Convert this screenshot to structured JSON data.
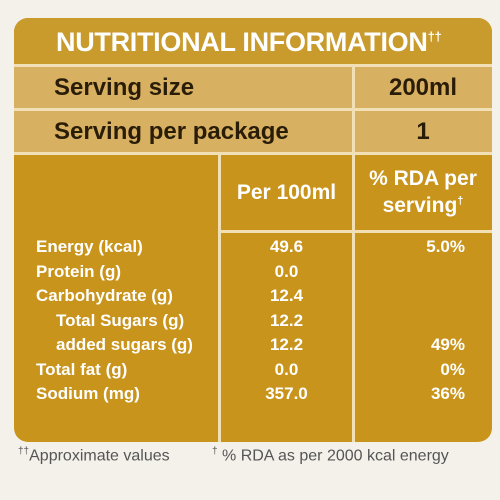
{
  "header": {
    "title": "NUTRITIONAL INFORMATION",
    "title_mark": "††"
  },
  "serving": [
    [
      "Serving size",
      "200ml"
    ],
    [
      "Serving per package",
      "1"
    ]
  ],
  "table": {
    "columns": [
      "Per 100ml",
      "% RDA per serving"
    ],
    "rda_mark": "†",
    "rows": [
      [
        "Energy (kcal)",
        "49.6",
        "5.0%"
      ],
      [
        "Protein (g)",
        "0.0"
      ],
      [
        "Carbohydrate (g)",
        "12.4"
      ],
      [
        "Total Sugars (g)",
        "12.2"
      ],
      [
        "added sugars (g)",
        "12.2",
        "49%"
      ],
      [
        "Total fat (g)",
        "0.0",
        "0%"
      ],
      [
        "Sodium (mg)",
        "357.0",
        "36%"
      ]
    ]
  },
  "footnotes": [
    {
      "mark": "††",
      "text": "Approximate values"
    },
    {
      "mark": "†",
      "text": "% RDA as per 2000 kcal energy"
    }
  ]
}
